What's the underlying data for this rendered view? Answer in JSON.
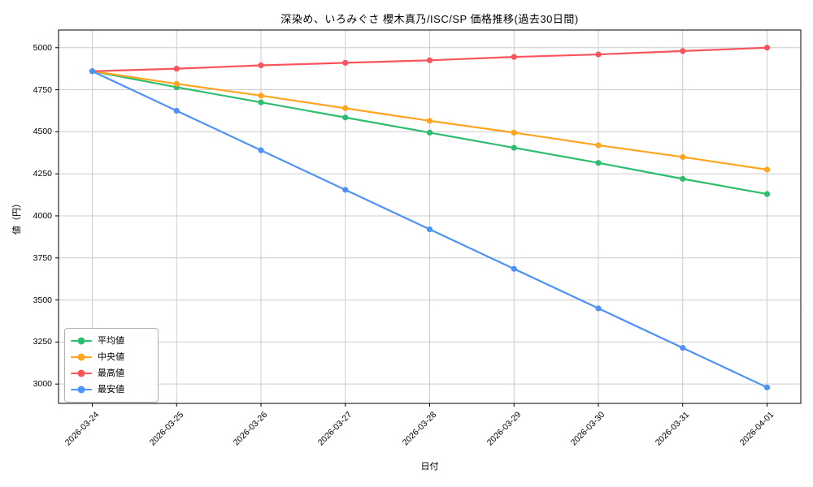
{
  "chart_data": {
    "type": "line",
    "title": "深染め、いろみぐさ 櫻木真乃/ISC/SP 価格推移(過去30日間)",
    "xlabel": "日付",
    "ylabel": "値（円）",
    "categories": [
      "2026-03-24",
      "2026-03-25",
      "2026-03-26",
      "2026-03-27",
      "2026-03-28",
      "2026-03-29",
      "2026-03-30",
      "2026-03-31",
      "2026-04-01"
    ],
    "series": [
      {
        "name": "平均値",
        "color": "#2dbd6e",
        "values": [
          4860,
          4765,
          4675,
          4585,
          4495,
          4405,
          4315,
          4220,
          4130
        ]
      },
      {
        "name": "中央値",
        "color": "#ffa41e",
        "values": [
          4860,
          4785,
          4715,
          4640,
          4565,
          4495,
          4420,
          4350,
          4275
        ]
      },
      {
        "name": "最高値",
        "color": "#f8545c",
        "values": [
          4860,
          4875,
          4895,
          4910,
          4925,
          4945,
          4960,
          4980,
          5000
        ]
      },
      {
        "name": "最安値",
        "color": "#4e92f8",
        "values": [
          4860,
          4625,
          4390,
          4155,
          3920,
          3685,
          3450,
          3215,
          2980
        ]
      }
    ],
    "yticks": [
      3000,
      3250,
      3500,
      3750,
      4000,
      4250,
      4500,
      4750,
      5000
    ],
    "ylim": [
      2885,
      5105
    ],
    "x_margin": 0.4,
    "grid": true,
    "grid_color": "#cccccc",
    "axis_color": "#000000",
    "background": "#ffffff",
    "legend_position": "lower left",
    "marker": "circle"
  }
}
